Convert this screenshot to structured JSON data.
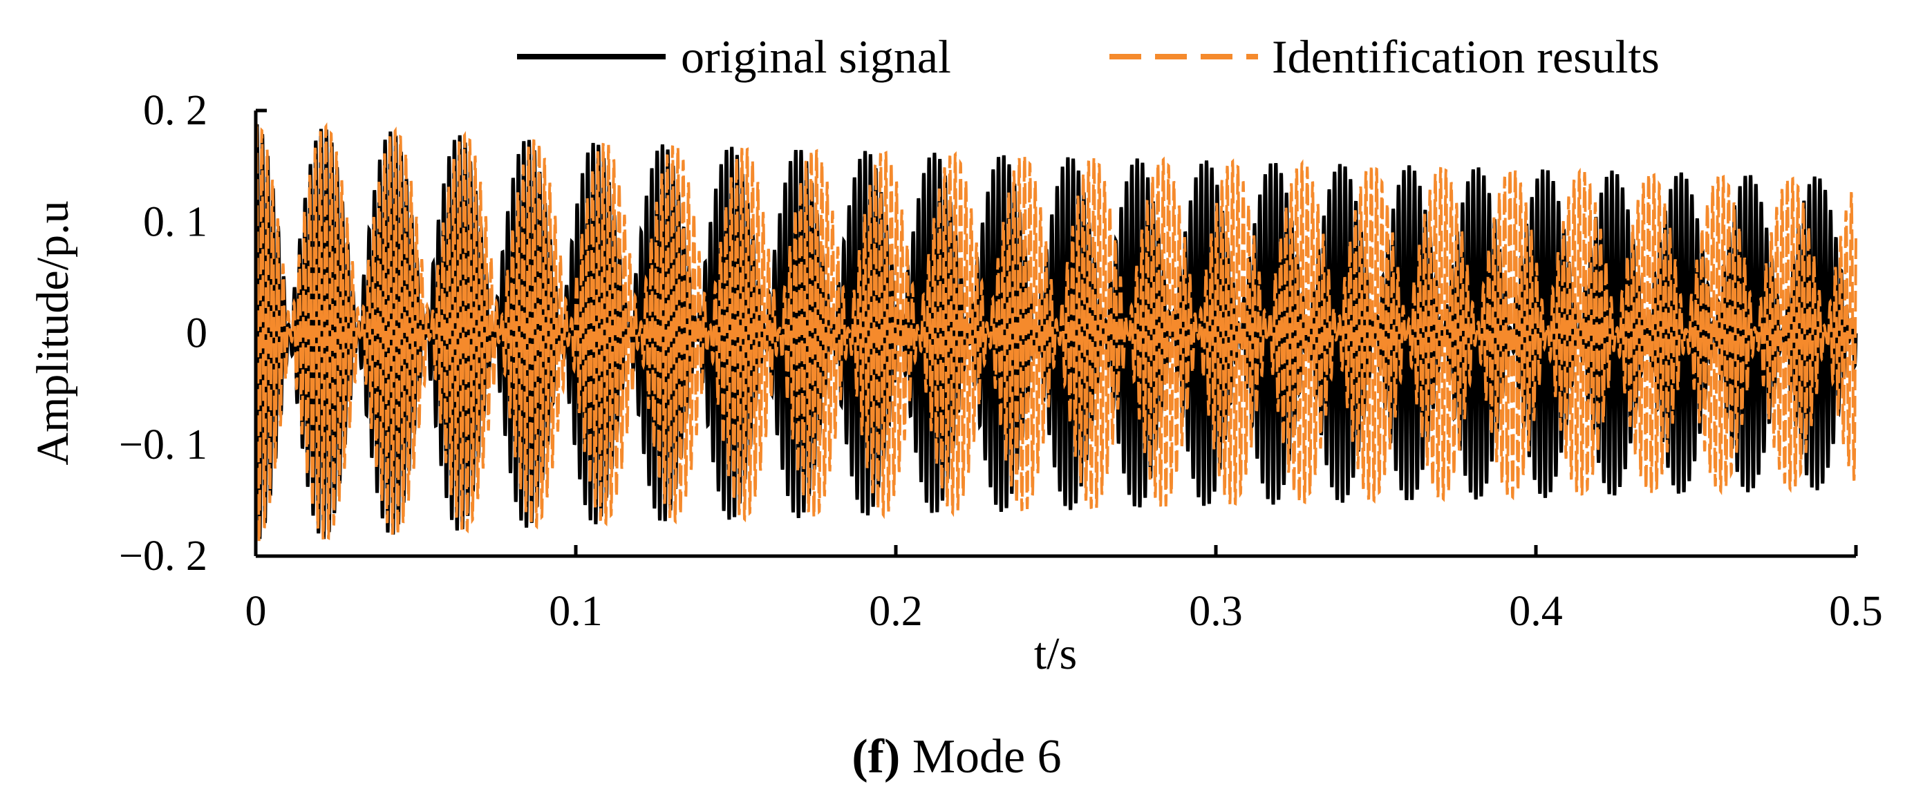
{
  "chart_data": {
    "type": "line",
    "xlabel": "t/s",
    "ylabel": "Amplitude/p.u",
    "xlim": [
      0,
      0.5
    ],
    "ylim": [
      -0.2,
      0.2
    ],
    "x_ticks": [
      "0",
      "0.1",
      "0.2",
      "0.3",
      "0.4",
      "0.5"
    ],
    "y_ticks": [
      "0. 2",
      "0. 1",
      "0",
      "−0. 1",
      "−0. 2"
    ],
    "legend_position": "top",
    "series": [
      {
        "name": "original signal",
        "color": "#000000",
        "style": "solid",
        "beat_period_s": 0.0212,
        "carrier_freq_hz": 600,
        "envelope_peaks": [
          {
            "t": 0.0,
            "amp": 0.188
          },
          {
            "t": 0.1,
            "amp": 0.172
          },
          {
            "t": 0.2,
            "amp": 0.163
          },
          {
            "t": 0.3,
            "amp": 0.155
          },
          {
            "t": 0.4,
            "amp": 0.148
          },
          {
            "t": 0.5,
            "amp": 0.14
          }
        ]
      },
      {
        "name": "Identification results",
        "color": "#F58A2C",
        "style": "dashed",
        "beat_period_s": 0.0218,
        "carrier_freq_hz": 600,
        "envelope_peaks": [
          {
            "t": 0.0,
            "amp": 0.19
          },
          {
            "t": 0.1,
            "amp": 0.172
          },
          {
            "t": 0.2,
            "amp": 0.163
          },
          {
            "t": 0.3,
            "amp": 0.155
          },
          {
            "t": 0.4,
            "amp": 0.147
          },
          {
            "t": 0.5,
            "amp": 0.138
          }
        ]
      }
    ]
  },
  "caption": {
    "letter": "(f)",
    "text": " Mode 6"
  }
}
